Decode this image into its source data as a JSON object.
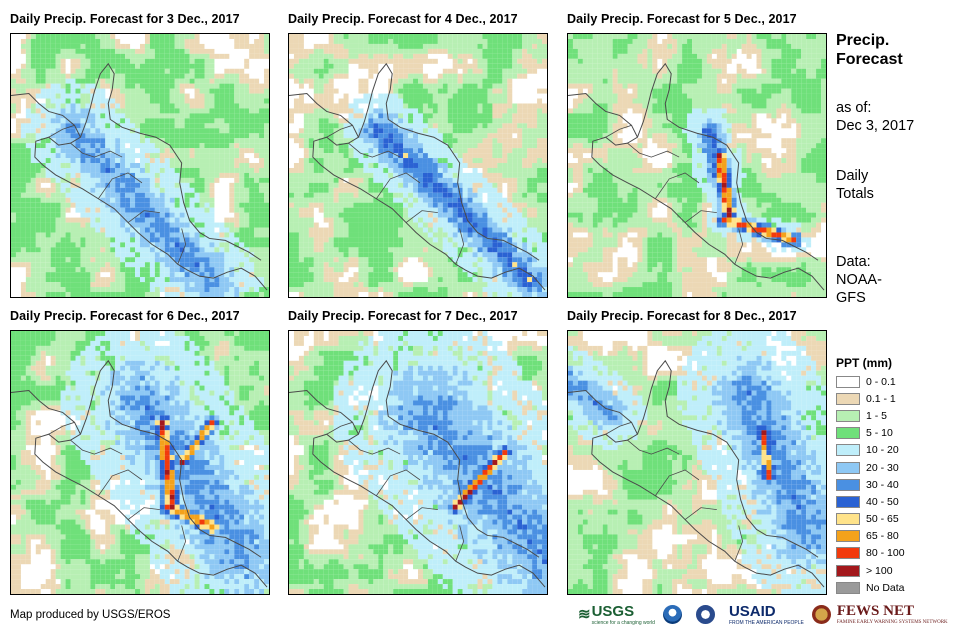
{
  "panels": [
    {
      "title": "Daily Precip. Forecast for 3 Dec., 2017",
      "date": "3 Dec., 2017"
    },
    {
      "title": "Daily Precip. Forecast for 4 Dec., 2017",
      "date": "4 Dec., 2017"
    },
    {
      "title": "Daily Precip. Forecast for 5 Dec., 2017",
      "date": "5 Dec., 2017"
    },
    {
      "title": "Daily Precip. Forecast for 6 Dec., 2017",
      "date": "6 Dec., 2017"
    },
    {
      "title": "Daily Precip. Forecast for 7 Dec., 2017",
      "date": "7 Dec., 2017"
    },
    {
      "title": "Daily Precip. Forecast for 8 Dec., 2017",
      "date": "8 Dec., 2017"
    }
  ],
  "side": {
    "title_line1": "Precip.",
    "title_line2": "Forecast",
    "asof_line1": "as of:",
    "asof_line2": "Dec 3, 2017",
    "totals_line1": "Daily",
    "totals_line2": "Totals",
    "data_line1": "Data:",
    "data_line2": "NOAA-",
    "data_line3": "GFS"
  },
  "legend": {
    "title": "PPT (mm)",
    "items": [
      {
        "label": "0 - 0.1",
        "color": "#ffffff"
      },
      {
        "label": "0.1 - 1",
        "color": "#ecd8b5"
      },
      {
        "label": "1 - 5",
        "color": "#b7efb3"
      },
      {
        "label": "5 - 10",
        "color": "#6fe07a"
      },
      {
        "label": "10 - 20",
        "color": "#bfeefa"
      },
      {
        "label": "20 - 30",
        "color": "#8ec8f4"
      },
      {
        "label": "30 - 40",
        "color": "#4a90e2"
      },
      {
        "label": "40 - 50",
        "color": "#2a62d3"
      },
      {
        "label": "50 - 65",
        "color": "#ffe38a"
      },
      {
        "label": "65 - 80",
        "color": "#f4a21b"
      },
      {
        "label": "80 - 100",
        "color": "#f23a0c"
      },
      {
        "label": "> 100",
        "color": "#a3181c"
      },
      {
        "label": "No Data",
        "color": "#9a9a9a"
      }
    ]
  },
  "footer": {
    "credit": "Map produced by USGS/EROS",
    "logos": {
      "usgs": "USGS",
      "usgs_tagline": "science for a changing world",
      "noaa": "noaa-logo",
      "dos": "state-dept-logo",
      "usaid": "USAID",
      "usaid_tagline": "FROM THE AMERICAN PEOPLE",
      "fews": "FEWS NET",
      "fews_tagline": "FAMINE EARLY WARNING SYSTEMS NETWORK"
    }
  }
}
